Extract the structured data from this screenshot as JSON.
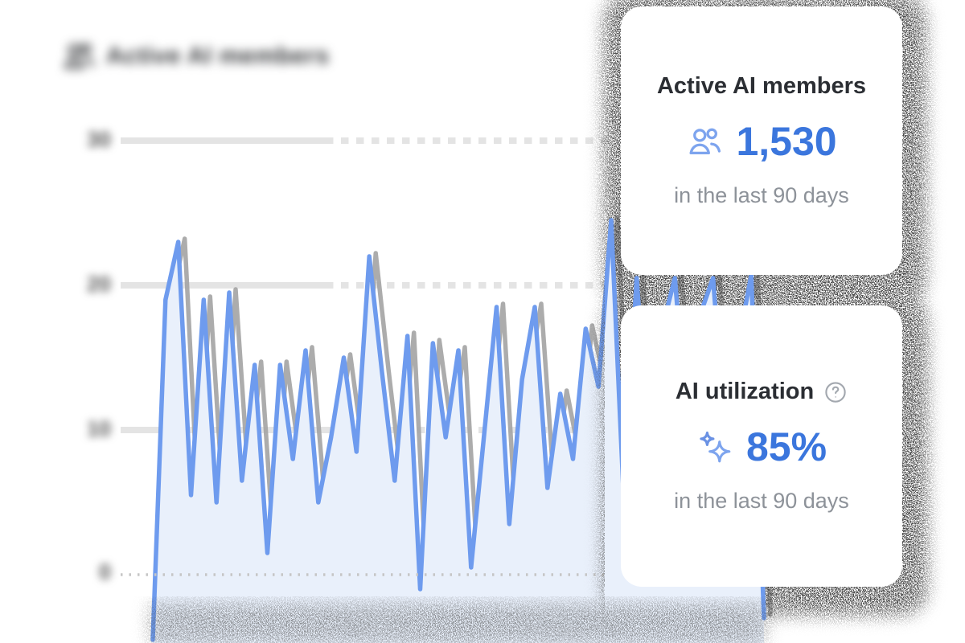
{
  "header": {
    "title": "Active AI members",
    "icon": "people-icon",
    "blurred": true
  },
  "cards": [
    {
      "title": "Active AI members",
      "icon": "people-icon",
      "value": "1,530",
      "caption": "in the last 90 days"
    },
    {
      "title": "AI utilization",
      "help_icon": "question-circle-icon",
      "icon": "sparkles-icon",
      "value": "85%",
      "caption": "in the last 90 days"
    }
  ],
  "colors": {
    "accent_blue": "#3b76dd",
    "icon_blue": "#7da4ee",
    "line_blue": "#6e9bee",
    "area_fill": "#e9f0fb",
    "echo_gray": "#a3a3a3",
    "grid_gray": "#e4e4e4",
    "dot_gray": "#c6c6c6",
    "title_dark": "#2b2e33",
    "caption_gray": "#8d9299"
  },
  "chart_data": {
    "type": "area",
    "title": "Active AI members",
    "xlabel": "",
    "ylabel": "",
    "y_ticks": [
      "30",
      "20",
      "10",
      "0"
    ],
    "y_tick_values": [
      30,
      20,
      10,
      0
    ],
    "ylim": [
      -5,
      32
    ],
    "grid": "horizontal",
    "legend": "none",
    "x_axis_labels": "none (90-day daily series, labels not shown)",
    "values": [
      -4.5,
      19,
      23,
      5.5,
      19,
      5,
      19.5,
      6.5,
      14.5,
      1.5,
      14.5,
      8,
      15.5,
      5,
      9.5,
      15,
      8.5,
      22,
      14,
      6.5,
      16.5,
      -1,
      16,
      9.5,
      15.5,
      0.5,
      9.5,
      18.5,
      3.5,
      13.5,
      18.5,
      6,
      12.5,
      8,
      17,
      13,
      24.5,
      5,
      20.5,
      8,
      17,
      20.5,
      10,
      18,
      20.5,
      9,
      16,
      20.7,
      -3
    ]
  }
}
